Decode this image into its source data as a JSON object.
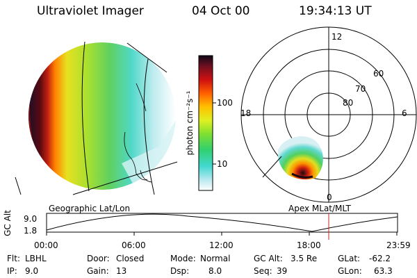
{
  "header": {
    "instrument": "Ultraviolet Imager",
    "date": "04 Oct 00",
    "time": "19:34:13 UT"
  },
  "colorbar": {
    "label": "photon cm⁻²s⁻¹",
    "ticks": [
      "100",
      "10"
    ]
  },
  "polar": {
    "mlt_labels": [
      "12",
      "18",
      "6",
      "0"
    ],
    "lat_labels": [
      "60",
      "70",
      "80"
    ]
  },
  "panels": {
    "left_title": "Geographic Lat/Lon",
    "right_title": "Apex MLat/MLT"
  },
  "alt_plot": {
    "ylabel": "GC Alt",
    "yticks": [
      "9.0",
      "1.8"
    ],
    "xticks": [
      "00:00",
      "06:00",
      "12:00",
      "18:00",
      "23:59"
    ],
    "marker_color": "#cc2222"
  },
  "status": {
    "filter_label": "Flt:",
    "filter_value": "LBHL",
    "ip_label": "IP:",
    "ip_value": "9.0",
    "door_label": "Door:",
    "door_value": "Closed",
    "gain_label": "Gain:",
    "gain_value": "13",
    "mode_label": "Mode:",
    "mode_value": "Normal",
    "dsp_label": "Dsp:",
    "dsp_value": "8.0",
    "gcalt_label": "GC Alt:",
    "gcalt_value": "3.5 Re",
    "seq_label": "Seq:",
    "seq_value": "39",
    "glat_label": "GLat:",
    "glat_value": "-62.2",
    "glon_label": "GLon:",
    "glon_value": "63.3"
  }
}
